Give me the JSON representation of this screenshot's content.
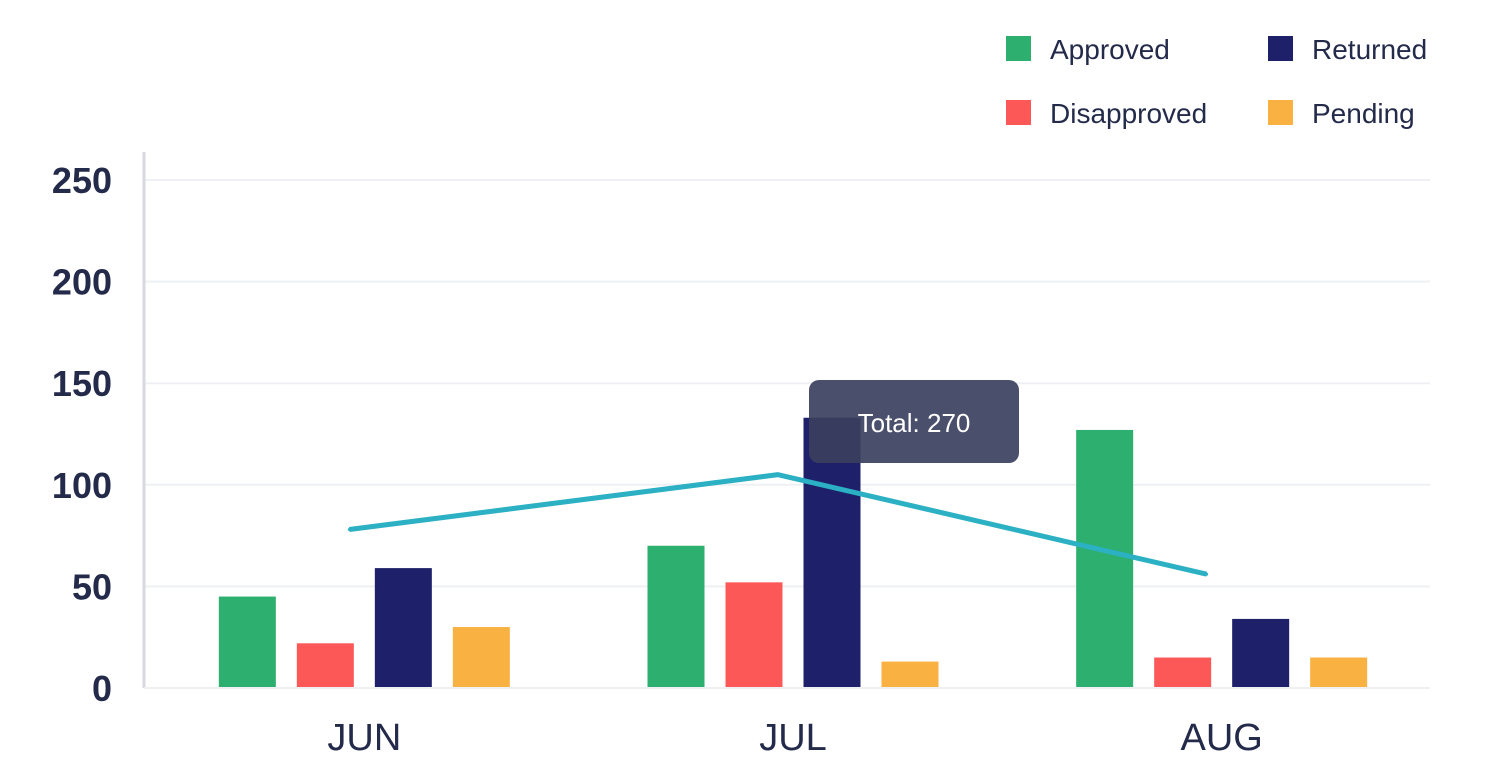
{
  "chart_data": {
    "type": "bar",
    "categories": [
      "JUN",
      "JUL",
      "AUG"
    ],
    "series": [
      {
        "name": "Approved",
        "color": "#2daf6f",
        "values": [
          45,
          70,
          127
        ]
      },
      {
        "name": "Disapproved",
        "color": "#fd5858",
        "values": [
          22,
          52,
          15
        ]
      },
      {
        "name": "Returned",
        "color": "#1e2069",
        "values": [
          59,
          133,
          34
        ]
      },
      {
        "name": "Pending",
        "color": "#f9b242",
        "values": [
          30,
          13,
          15
        ]
      }
    ],
    "line": {
      "color": "#2bb0c4",
      "values": [
        78,
        105,
        56
      ]
    },
    "ylim": [
      0,
      250
    ],
    "yticks": [
      0,
      50,
      100,
      150,
      200,
      250
    ],
    "grid": true,
    "legend_position": "top-right",
    "tooltip": {
      "text": "Total: 270",
      "category": "JUL"
    }
  }
}
